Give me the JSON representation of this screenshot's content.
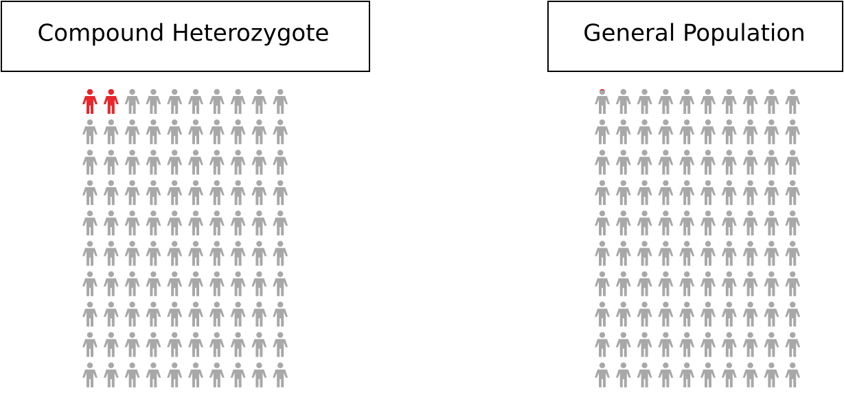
{
  "chart_data": [
    {
      "type": "pictograph",
      "title": "Compound Heterozygote",
      "value": 2,
      "total": 100,
      "columns": 10,
      "color": "#e8262b",
      "base_color": "#a8a8a8"
    },
    {
      "type": "pictograph",
      "title": "General Population",
      "value": 0.05,
      "total": 100,
      "columns": 10,
      "color": "#e8262b",
      "base_color": "#a8a8a8"
    }
  ]
}
